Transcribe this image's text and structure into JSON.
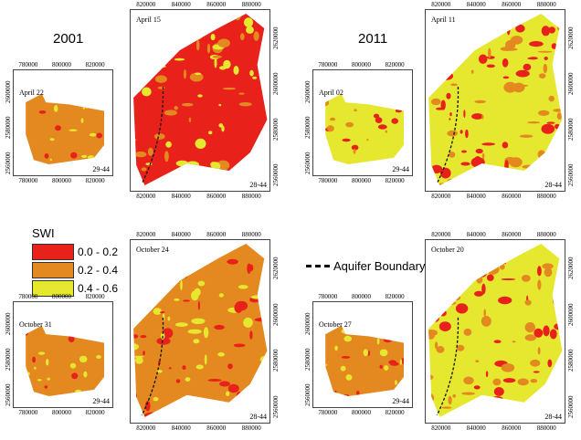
{
  "years": {
    "left": "2001",
    "right": "2011"
  },
  "legend": {
    "title": "SWI",
    "classes": [
      {
        "label": "0.0 - 0.2",
        "color": "#e8211b"
      },
      {
        "label": "0.2 - 0.4",
        "color": "#e3891f"
      },
      {
        "label": "0.4 - 0.6",
        "color": "#e6e830"
      }
    ]
  },
  "aquifer_label": "Aquifer Boundary",
  "small_ticks": {
    "x": [
      "780000",
      "800000",
      "820000"
    ],
    "y": [
      "2600000",
      "2580000",
      "2560000"
    ]
  },
  "large_ticks": {
    "x": [
      "820000",
      "840000",
      "860000",
      "880000"
    ],
    "y": [
      "2620000",
      "2600000",
      "2580000",
      "2560000"
    ]
  },
  "maps": [
    {
      "id": "m2001-apr-small",
      "date": "April 22",
      "tile": "29-44",
      "dominant": "orange"
    },
    {
      "id": "m2001-apr-large",
      "date": "April 15",
      "tile": "28-44",
      "dominant": "red"
    },
    {
      "id": "m2011-apr-small",
      "date": "April 02",
      "tile": "29-44",
      "dominant": "yellow"
    },
    {
      "id": "m2011-apr-large",
      "date": "April 11",
      "tile": "28-44",
      "dominant": "yellow"
    },
    {
      "id": "m2001-oct-small",
      "date": "October 31",
      "tile": "29-44",
      "dominant": "orange"
    },
    {
      "id": "m2001-oct-large",
      "date": "October 24",
      "tile": "28-44",
      "dominant": "orange"
    },
    {
      "id": "m2011-oct-small",
      "date": "October 27",
      "tile": "29-44",
      "dominant": "orange"
    },
    {
      "id": "m2011-oct-large",
      "date": "October 20",
      "tile": "28-44",
      "dominant": "yellow"
    }
  ]
}
